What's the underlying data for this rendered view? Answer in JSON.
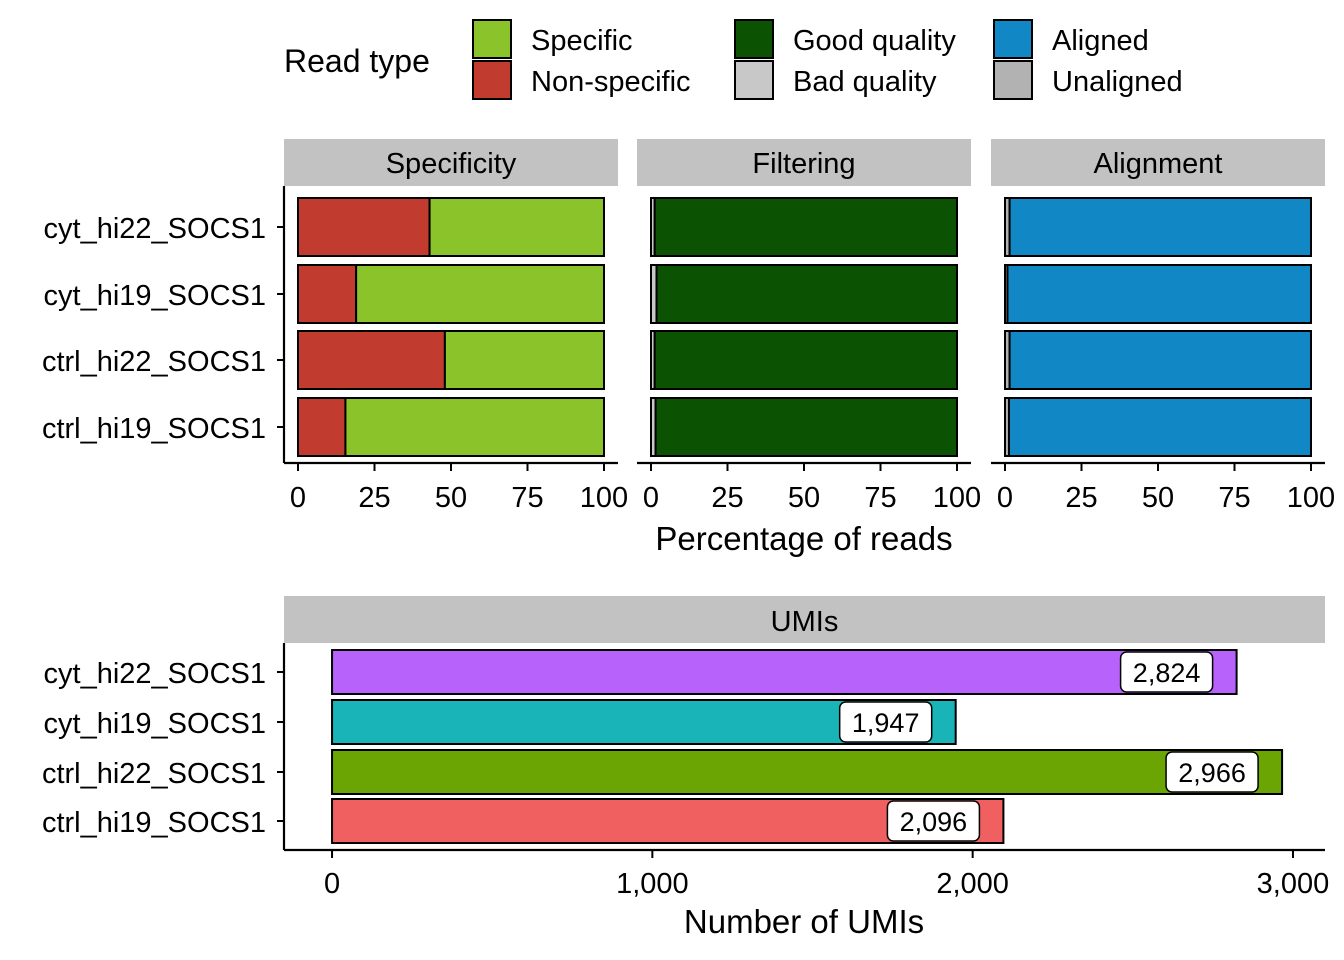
{
  "legend": {
    "title": "Read type",
    "items": [
      {
        "label": "Specific",
        "color": "#8bc42a"
      },
      {
        "label": "Non-specific",
        "color": "#c23b2f"
      },
      {
        "label": "Good quality",
        "color": "#0b5203"
      },
      {
        "label": "Bad quality",
        "color": "#c8c8c8"
      },
      {
        "label": "Aligned",
        "color": "#1187c5"
      },
      {
        "label": "Unaligned",
        "color": "#b2b2b2"
      }
    ]
  },
  "chart_data": [
    {
      "type": "bar",
      "orientation": "horizontal",
      "stacked": true,
      "facets": [
        "Specificity",
        "Filtering",
        "Alignment"
      ],
      "categories": [
        "cyt_hi22_SOCS1",
        "cyt_hi19_SOCS1",
        "ctrl_hi22_SOCS1",
        "ctrl_hi19_SOCS1"
      ],
      "xlabel": "Percentage of reads",
      "xlim": [
        0,
        100
      ],
      "xticks": [
        0,
        25,
        50,
        75,
        100
      ],
      "panels": [
        {
          "facet": "Specificity",
          "series": [
            {
              "name": "Non-specific",
              "color": "#c23b2f",
              "values": [
                43,
                19,
                48,
                15.5
              ]
            },
            {
              "name": "Specific",
              "color": "#8bc42a",
              "values": [
                57,
                81,
                52,
                84.5
              ]
            }
          ]
        },
        {
          "facet": "Filtering",
          "series": [
            {
              "name": "Bad quality",
              "color": "#c8c8c8",
              "values": [
                1.2,
                1.8,
                1.2,
                1.5
              ]
            },
            {
              "name": "Good quality",
              "color": "#0b5203",
              "values": [
                98.8,
                98.2,
                98.8,
                98.5
              ]
            }
          ]
        },
        {
          "facet": "Alignment",
          "series": [
            {
              "name": "Unaligned",
              "color": "#b2b2b2",
              "values": [
                1.5,
                0.8,
                1.5,
                1.3
              ]
            },
            {
              "name": "Aligned",
              "color": "#1187c5",
              "values": [
                98.5,
                99.2,
                98.5,
                98.7
              ]
            }
          ]
        }
      ]
    },
    {
      "type": "bar",
      "orientation": "horizontal",
      "facet": "UMIs",
      "categories": [
        "cyt_hi22_SOCS1",
        "cyt_hi19_SOCS1",
        "ctrl_hi22_SOCS1",
        "ctrl_hi19_SOCS1"
      ],
      "values": [
        2824,
        1947,
        2966,
        2096
      ],
      "labels": [
        "2,824",
        "1,947",
        "2,966",
        "2,096"
      ],
      "colors": [
        "#b862fc",
        "#19b4b8",
        "#6aa503",
        "#f06060"
      ],
      "xlabel": "Number of UMIs",
      "xlim": [
        -150,
        3100
      ],
      "xticks": [
        0,
        1000,
        2000,
        3000
      ],
      "xtick_labels": [
        "0",
        "1,000",
        "2,000",
        "3,000"
      ]
    }
  ]
}
